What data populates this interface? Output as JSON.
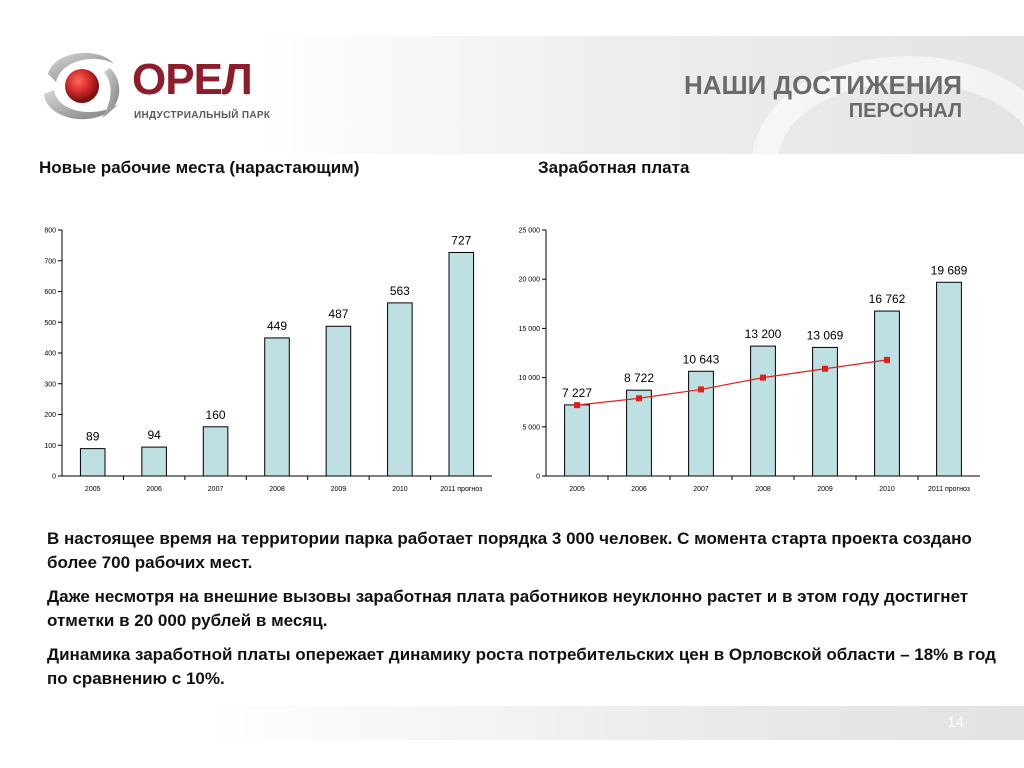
{
  "logo": {
    "name": "ОРЕЛ",
    "subtitle": "ИНДУСТРИАЛЬНЫЙ ПАРК",
    "colors": {
      "brand": "#8e1d2c",
      "sphere": "#d42a2a",
      "ribbon": "#9a9a9a"
    }
  },
  "header": {
    "title": "НАШИ ДОСТИЖЕНИЯ",
    "subtitle": "ПЕРСОНАЛ"
  },
  "charts": {
    "left_title": "Новые рабочие места (нарастающим)",
    "right_title": "Заработная плата"
  },
  "chart_data": [
    {
      "type": "bar",
      "categories": [
        "2005",
        "2006",
        "2007",
        "2008",
        "2009",
        "2010",
        "2011 прогноз"
      ],
      "values": [
        89,
        94,
        160,
        449,
        487,
        563,
        727
      ],
      "value_labels": [
        "89",
        "94",
        "160",
        "449",
        "487",
        "563",
        "727"
      ],
      "ylim": [
        0,
        800
      ],
      "yticks": [
        0,
        100,
        200,
        300,
        400,
        500,
        600,
        700,
        800
      ],
      "ytick_labels": [
        "0",
        "100",
        "200",
        "300",
        "400",
        "500",
        "600",
        "700",
        "800"
      ],
      "bar_color": "#bfe0e2",
      "grid": false
    },
    {
      "type": "bar",
      "categories": [
        "2005",
        "2006",
        "2007",
        "2008",
        "2009",
        "2010",
        "2011 прогноз"
      ],
      "values": [
        7227,
        8722,
        10643,
        13200,
        13069,
        16762,
        19689
      ],
      "value_labels": [
        "7 227",
        "8 722",
        "10 643",
        "13 200",
        "13 069",
        "16 762",
        "19 689"
      ],
      "line_series": {
        "values": [
          7200,
          7900,
          8800,
          10000,
          10900,
          11800
        ],
        "color": "#e0201b"
      },
      "ylim": [
        0,
        25000
      ],
      "yticks": [
        0,
        5000,
        10000,
        15000,
        20000,
        25000
      ],
      "ytick_labels": [
        "0",
        "5 000",
        "10 000",
        "15 000",
        "20 000",
        "25 000"
      ],
      "bar_color": "#bfe0e2",
      "grid": false
    }
  ],
  "body": {
    "p1": "В настоящее время на территории парка работает порядка 3 000 человек. С момента старта проекта создано более 700 рабочих мест.",
    "p2": "Даже несмотря на внешние вызовы заработная плата работников неуклонно растет и в этом году достигнет отметки в 20 000 рублей в месяц.",
    "p3": "Динамика заработной платы опережает динамику роста потребительских цен в Орловской области – 18% в год по сравнению с 10%."
  },
  "footer": {
    "page_number": "14"
  }
}
